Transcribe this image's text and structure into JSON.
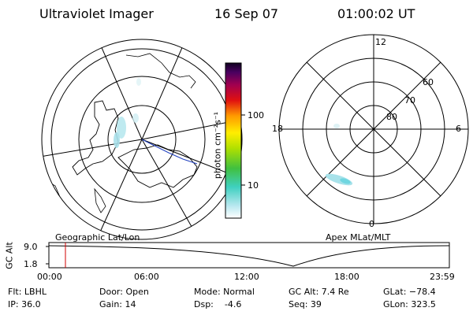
{
  "header": {
    "title": "Ultraviolet Imager",
    "date": "16 Sep 07",
    "time": "01:00:02 UT"
  },
  "panels": {
    "left_label": "Geographic Lat/Lon",
    "right_label": "Apex MLat/MLT"
  },
  "colorbar": {
    "unit_label": "photon cm⁻²s⁻¹",
    "ticks": [
      "100",
      "10"
    ]
  },
  "polar_right": {
    "mlt_labels": {
      "top": "12",
      "left": "18",
      "right": "6",
      "bottom": "0"
    },
    "lat_labels": [
      "60",
      "70",
      "80"
    ]
  },
  "altitude_plot": {
    "ylabel": "GC Alt",
    "yticks": [
      "9.0",
      "1.8"
    ],
    "xticks": [
      "00:00",
      "06:00",
      "12:00",
      "18:00",
      "23:59"
    ],
    "current_time_marker": "01:00",
    "marker_color": "#d00000"
  },
  "info": {
    "filter": "Flt: LBHL",
    "ip": "IP: 36.0",
    "door": "Door: Open",
    "gain": "Gain: 14",
    "mode": "Mode: Normal",
    "dsp": "Dsp:    -4.6",
    "gc_alt": "GC Alt: 7.4 Re",
    "seq": "Seq: 39",
    "glat": "GLat: −78.4",
    "glon": "GLon: 323.5"
  }
}
